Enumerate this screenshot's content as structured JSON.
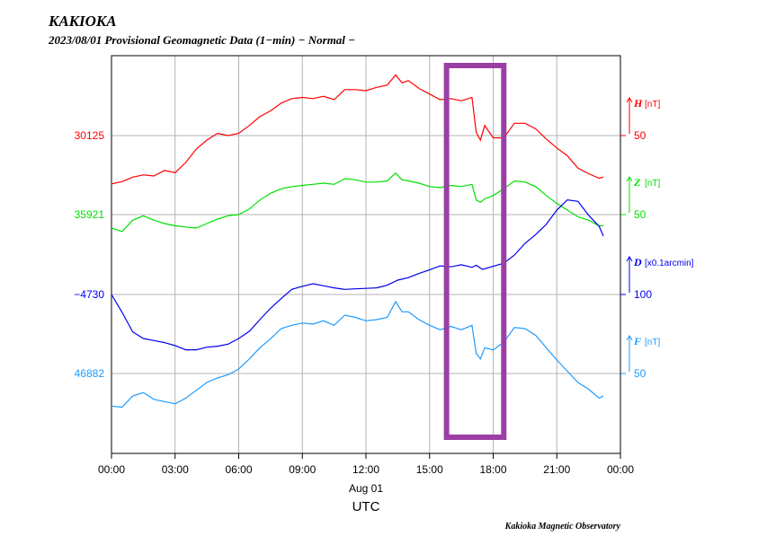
{
  "header": {
    "station": "KAKIOKA",
    "subtitle": "2023/08/01  Provisional Geomagnetic Data (1−min)  − Normal −"
  },
  "footer": {
    "credit": "Kakioka Magnetic Observatory"
  },
  "chart_data": {
    "type": "line",
    "title": "KAKIOKA",
    "subtitle": "2023/08/01  Provisional Geomagnetic Data (1−min)  − Normal −",
    "x_ticks": [
      "00:00",
      "03:00",
      "06:00",
      "09:00",
      "12:00",
      "15:00",
      "18:00",
      "21:00",
      "00:00"
    ],
    "x_date_label": "Aug 01",
    "x_unit_label": "UTC",
    "xlim_hours": [
      0,
      24
    ],
    "grid": true,
    "series": [
      {
        "name": "H",
        "unit": "[nT]",
        "color": "#ff0000",
        "base_label": "30125",
        "scale_label": "50",
        "x_hours": [
          0,
          0.5,
          1,
          1.5,
          2,
          2.5,
          3,
          3.5,
          4,
          4.5,
          5,
          5.5,
          6,
          6.5,
          7,
          7.5,
          8,
          8.5,
          9,
          9.5,
          10,
          10.5,
          11,
          11.5,
          12,
          12.5,
          13,
          13.4,
          13.7,
          14,
          14.5,
          15,
          15.5,
          16,
          16.5,
          17,
          17.2,
          17.4,
          17.6,
          18,
          18.5,
          19,
          19.5,
          20,
          20.5,
          21,
          21.5,
          22,
          22.5,
          23,
          23.2
        ],
        "values": [
          30082,
          30084,
          30088,
          30090,
          30089,
          30094,
          30092,
          30101,
          30113,
          30121,
          30127,
          30125,
          30127,
          30134,
          30142,
          30147,
          30154,
          30158,
          30159,
          30158,
          30160,
          30157,
          30166,
          30166,
          30165,
          30168,
          30170,
          30179,
          30172,
          30174,
          30167,
          30162,
          30157,
          30158,
          30156,
          30159,
          30128,
          30121,
          30134,
          30123,
          30123,
          30136,
          30136,
          30131,
          30122,
          30114,
          30107,
          30096,
          30091,
          30087,
          30088
        ]
      },
      {
        "name": "Z",
        "unit": "[nT]",
        "color": "#00e000",
        "base_label": "35921",
        "scale_label": "50",
        "x_hours": [
          0,
          0.5,
          1,
          1.5,
          2,
          2.5,
          3,
          3.5,
          4,
          4.5,
          5,
          5.5,
          6,
          6.5,
          7,
          7.5,
          8,
          8.5,
          9,
          9.5,
          10,
          10.5,
          11,
          11.5,
          12,
          12.5,
          13,
          13.4,
          13.7,
          14,
          14.5,
          15,
          15.5,
          16,
          16.5,
          17,
          17.2,
          17.4,
          17.6,
          18,
          18.5,
          19,
          19.5,
          20,
          20.5,
          21,
          21.5,
          22,
          22.5,
          23,
          23.2
        ],
        "values": [
          35909,
          35906,
          35916,
          35920,
          35916,
          35913,
          35911,
          35910,
          35909,
          35913,
          35917,
          35920,
          35921,
          35926,
          35934,
          35940,
          35944,
          35946,
          35947,
          35948,
          35949,
          35948,
          35953,
          35952,
          35950,
          35950,
          35951,
          35958,
          35952,
          35951,
          35949,
          35946,
          35945,
          35947,
          35946,
          35948,
          35934,
          35932,
          35935,
          35938,
          35944,
          35951,
          35950,
          35946,
          35938,
          35931,
          35925,
          35919,
          35916,
          35911,
          35911
        ]
      },
      {
        "name": "D",
        "unit": "[x0.1arcmin]",
        "color": "#0000ee",
        "base_label": "−4730",
        "scale_label": "100",
        "x_hours": [
          0,
          0.5,
          1,
          1.5,
          2,
          2.5,
          3,
          3.5,
          4,
          4.5,
          5,
          5.5,
          6,
          6.5,
          7,
          7.5,
          8,
          8.5,
          9,
          9.5,
          10,
          10.5,
          11,
          11.5,
          12,
          12.5,
          13,
          13.5,
          14,
          14.5,
          15,
          15.5,
          16,
          16.5,
          17,
          17.2,
          17.5,
          18,
          18.5,
          19,
          19.5,
          20,
          20.5,
          21,
          21.5,
          22,
          22.5,
          23,
          23.2
        ],
        "values": [
          -4730,
          -4765,
          -4803,
          -4816,
          -4820,
          -4824,
          -4830,
          -4838,
          -4838,
          -4833,
          -4831,
          -4827,
          -4816,
          -4802,
          -4779,
          -4757,
          -4738,
          -4720,
          -4714,
          -4709,
          -4713,
          -4717,
          -4720,
          -4719,
          -4718,
          -4717,
          -4712,
          -4702,
          -4697,
          -4689,
          -4682,
          -4674,
          -4676,
          -4672,
          -4677,
          -4673,
          -4681,
          -4675,
          -4669,
          -4653,
          -4630,
          -4613,
          -4593,
          -4565,
          -4545,
          -4548,
          -4575,
          -4597,
          -4616
        ]
      },
      {
        "name": "F",
        "unit": "[nT]",
        "color": "#1e9bff",
        "base_label": "46882",
        "scale_label": "50",
        "x_hours": [
          0,
          0.5,
          1,
          1.5,
          2,
          2.5,
          3,
          3.5,
          4,
          4.5,
          5,
          5.5,
          6,
          6.5,
          7,
          7.5,
          8,
          8.5,
          9,
          9.5,
          10,
          10.5,
          11,
          11.5,
          12,
          12.5,
          13,
          13.4,
          13.7,
          14,
          14.5,
          15,
          15.5,
          16,
          16.5,
          17,
          17.2,
          17.4,
          17.6,
          18,
          18.5,
          19,
          19.5,
          20,
          20.5,
          21,
          21.5,
          22,
          22.5,
          23,
          23.2
        ],
        "values": [
          46853,
          46852,
          46862,
          46865,
          46859,
          46857,
          46855,
          46860,
          46867,
          46874,
          46878,
          46881,
          46886,
          46895,
          46905,
          46913,
          46922,
          46925,
          46927,
          46926,
          46929,
          46925,
          46934,
          46932,
          46929,
          46930,
          46932,
          46946,
          46937,
          46937,
          46930,
          46925,
          46921,
          46924,
          46921,
          46925,
          46900,
          46895,
          46905,
          46903,
          46910,
          46923,
          46922,
          46916,
          46905,
          46894,
          46884,
          46874,
          46868,
          46860,
          46862
        ]
      }
    ],
    "highlight_box": {
      "x_start_hours": 15.8,
      "x_end_hours": 18.5,
      "color": "#9b3fa5"
    }
  }
}
